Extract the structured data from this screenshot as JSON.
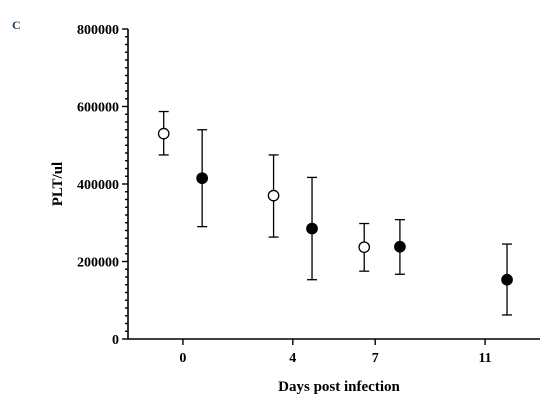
{
  "panel_label": "C",
  "chart_data": {
    "type": "scatter",
    "title": "",
    "xlabel": "Days post infection",
    "ylabel": "PLT/ul",
    "xlim": [
      -2,
      13
    ],
    "ylim": [
      0,
      800000
    ],
    "x_ticks": [
      0,
      4,
      7,
      11
    ],
    "x_tick_labels": [
      "0",
      "4",
      "7",
      "11"
    ],
    "y_ticks": [
      0,
      200000,
      400000,
      600000,
      800000
    ],
    "y_tick_labels": [
      "0",
      "200000",
      "400000",
      "600000",
      "800000"
    ],
    "grid": false,
    "error_bars": true,
    "series": [
      {
        "marker": "open-circle",
        "points": [
          {
            "x": -0.7,
            "y": 530000,
            "err_low": 475000,
            "err_high": 587000
          },
          {
            "x": 3.3,
            "y": 370000,
            "err_low": 263000,
            "err_high": 475000
          },
          {
            "x": 6.6,
            "y": 237000,
            "err_low": 175000,
            "err_high": 298000
          }
        ]
      },
      {
        "marker": "filled-circle",
        "points": [
          {
            "x": 0.7,
            "y": 415000,
            "err_low": 290000,
            "err_high": 540000
          },
          {
            "x": 4.7,
            "y": 285000,
            "err_low": 153000,
            "err_high": 417000
          },
          {
            "x": 7.9,
            "y": 238000,
            "err_low": 167000,
            "err_high": 308000
          },
          {
            "x": 11.8,
            "y": 153000,
            "err_low": 62000,
            "err_high": 245000
          }
        ]
      }
    ]
  }
}
